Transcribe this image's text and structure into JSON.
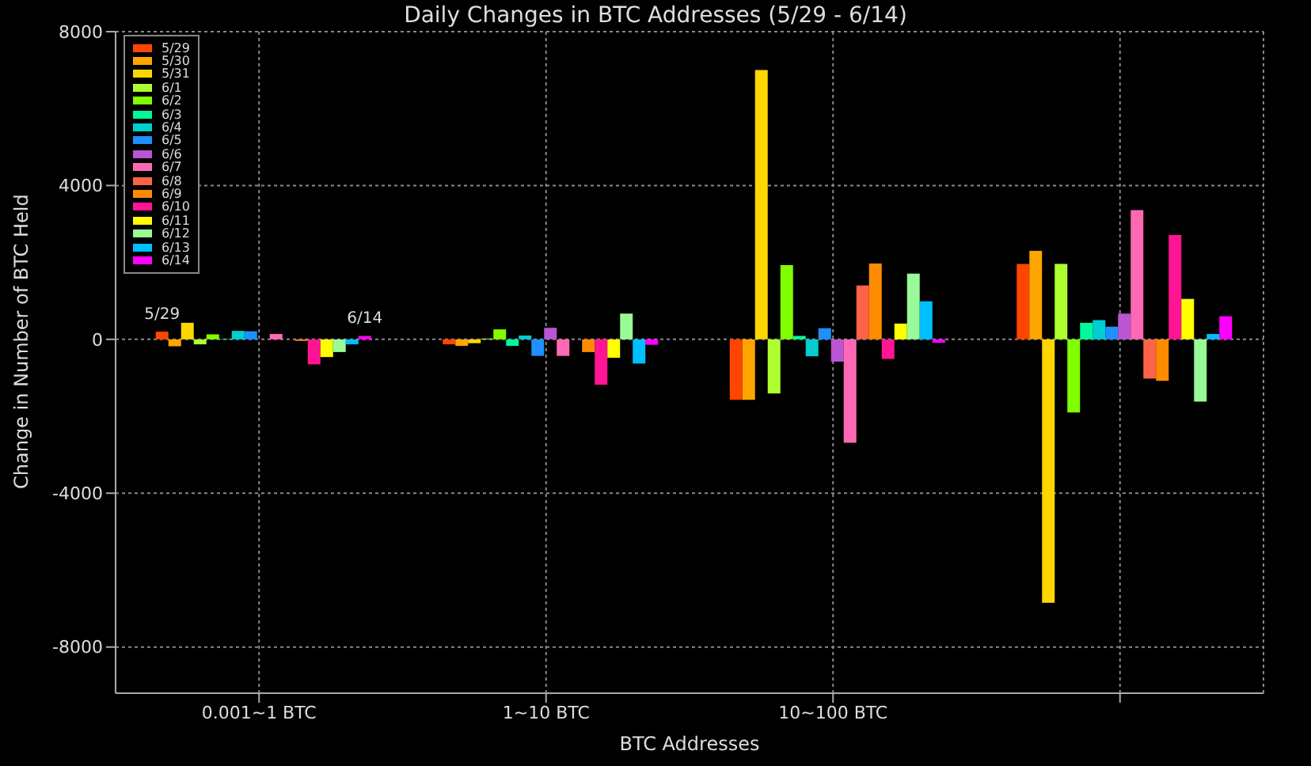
{
  "chart_data": {
    "type": "bar",
    "title": "Daily Changes in BTC Addresses (5/29 - 6/14)",
    "xlabel": "BTC Addresses",
    "ylabel": "Change in Number of BTC Held",
    "categories": [
      "0.001~1 BTC",
      "1~10 BTC",
      "10~100 BTC",
      null
    ],
    "series": [
      {
        "name": "5/29",
        "color": "#ff4500",
        "values": [
          200,
          -130,
          -1570,
          1960
        ]
      },
      {
        "name": "5/30",
        "color": "#ffa500",
        "values": [
          -180,
          -170,
          -1570,
          2300
        ]
      },
      {
        "name": "5/31",
        "color": "#ffd700",
        "values": [
          430,
          -100,
          7000,
          -6850
        ]
      },
      {
        "name": "6/1",
        "color": "#adff2f",
        "values": [
          -130,
          20,
          -1410,
          1960
        ]
      },
      {
        "name": "6/2",
        "color": "#7fff00",
        "values": [
          130,
          260,
          1930,
          -1900
        ]
      },
      {
        "name": "6/3",
        "color": "#00fa9a",
        "values": [
          10,
          -170,
          90,
          430
        ]
      },
      {
        "name": "6/4",
        "color": "#00ced1",
        "values": [
          220,
          100,
          -440,
          500
        ]
      },
      {
        "name": "6/5",
        "color": "#1e90ff",
        "values": [
          210,
          -430,
          290,
          330
        ]
      },
      {
        "name": "6/6",
        "color": "#ba55d3",
        "values": [
          0,
          300,
          -580,
          670
        ]
      },
      {
        "name": "6/7",
        "color": "#ff69b4",
        "values": [
          140,
          -430,
          -2690,
          3360
        ]
      },
      {
        "name": "6/8",
        "color": "#ff6347",
        "values": [
          null,
          null,
          1400,
          -1020
        ]
      },
      {
        "name": "6/9",
        "color": "#ff8c00",
        "values": [
          -40,
          -330,
          1970,
          -1080
        ]
      },
      {
        "name": "6/10",
        "color": "#ff1493",
        "values": [
          -650,
          -1180,
          -510,
          2710
        ]
      },
      {
        "name": "6/11",
        "color": "#ffff00",
        "values": [
          -460,
          -480,
          410,
          1050
        ]
      },
      {
        "name": "6/12",
        "color": "#98fb98",
        "values": [
          -330,
          670,
          1710,
          -1620
        ]
      },
      {
        "name": "6/13",
        "color": "#00bfff",
        "values": [
          -130,
          -630,
          990,
          140
        ]
      },
      {
        "name": "6/14",
        "color": "#ff00ff",
        "values": [
          90,
          -140,
          -90,
          600
        ]
      }
    ],
    "annotations": [
      "5/29",
      "6/14"
    ],
    "ylim": [
      -9200,
      8000
    ],
    "yticks": [
      -8000,
      -4000,
      0,
      4000,
      8000
    ],
    "grid": true,
    "legend": "top left"
  }
}
